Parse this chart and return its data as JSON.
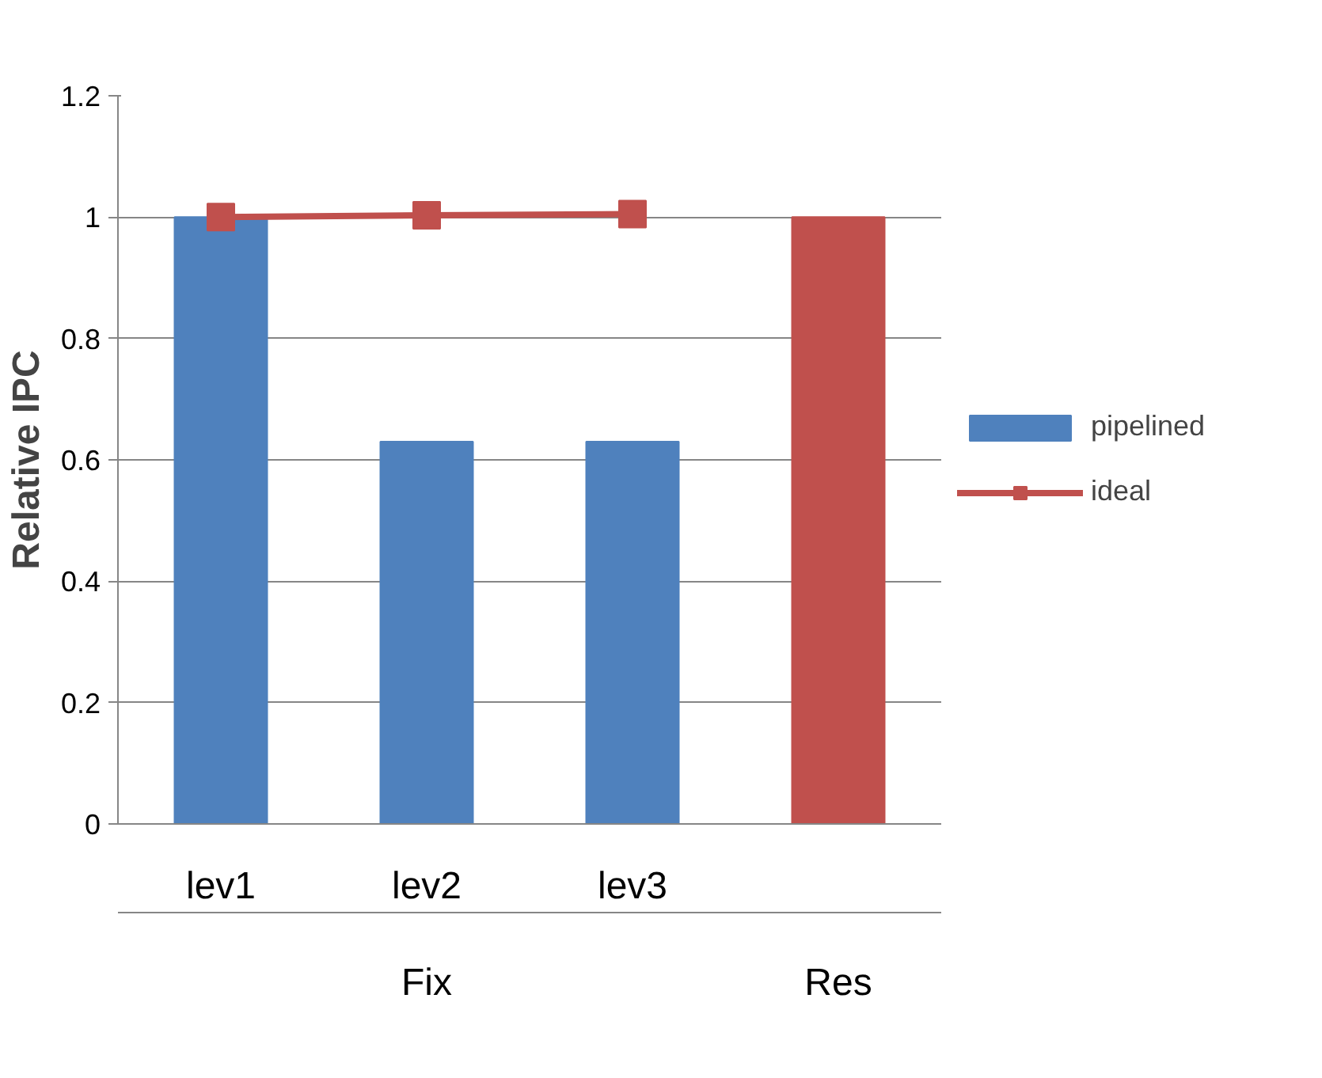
{
  "chart_data": {
    "type": "bar",
    "ylabel": "Relative IPC",
    "categories": [
      "lev1",
      "lev2",
      "lev3",
      null
    ],
    "annotations": [
      "Fix",
      "Res"
    ],
    "series": [
      {
        "name": "pipelined",
        "color": "#4f81bd",
        "colors": [
          "#4f81bd",
          "#4f81bd",
          "#4f81bd",
          "#c0504d"
        ],
        "values": [
          1,
          0.63,
          0.63,
          1
        ]
      },
      {
        "name": "ideal",
        "type": "line",
        "color": "#c0504d",
        "marker": "square",
        "values": [
          1,
          1.003,
          1.005,
          null
        ]
      }
    ],
    "ylim": [
      0,
      1.2
    ],
    "yticks": [
      0,
      0.2,
      0.4,
      0.6,
      0.8,
      1,
      1.2
    ],
    "grid": "y",
    "legend": "right"
  }
}
